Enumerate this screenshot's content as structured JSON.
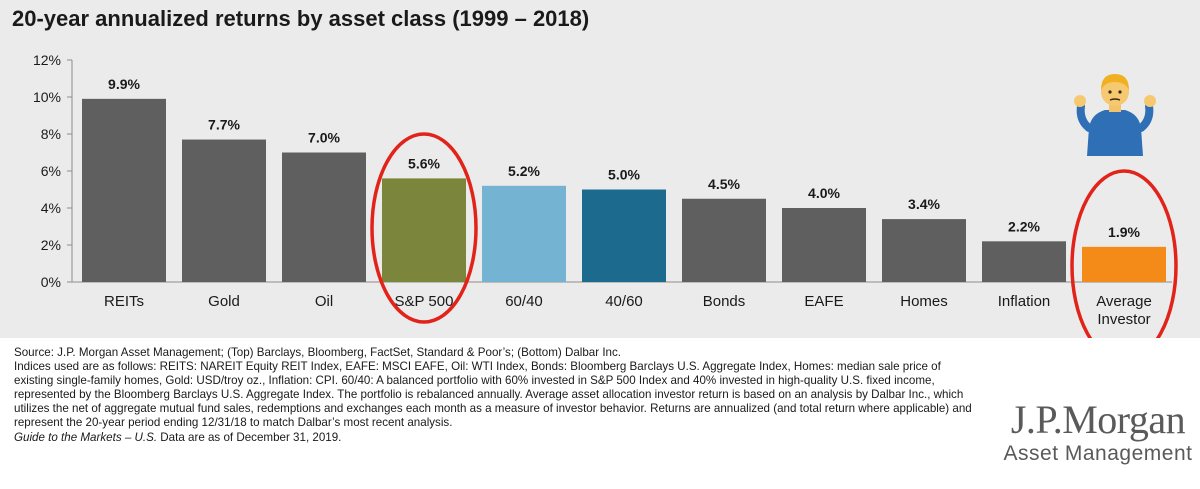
{
  "chart_data": {
    "type": "bar",
    "title": "20-year annualized returns by asset class (1999 – 2018)",
    "categories": [
      "REITs",
      "Gold",
      "Oil",
      "S&P 500",
      "60/40",
      "40/60",
      "Bonds",
      "EAFE",
      "Homes",
      "Inflation",
      "Average Investor"
    ],
    "values": [
      9.9,
      7.7,
      7.0,
      5.6,
      5.2,
      5.0,
      4.5,
      4.0,
      3.4,
      2.2,
      1.9
    ],
    "data_labels": [
      "9.9%",
      "7.7%",
      "7.0%",
      "5.6%",
      "5.2%",
      "5.0%",
      "4.5%",
      "4.0%",
      "3.4%",
      "2.2%",
      "1.9%"
    ],
    "colors": [
      "#5f5f5f",
      "#5f5f5f",
      "#5f5f5f",
      "#7b853c",
      "#74b3d2",
      "#1d6a8f",
      "#5f5f5f",
      "#5f5f5f",
      "#5f5f5f",
      "#5f5f5f",
      "#f48a17"
    ],
    "y_ticks": [
      0,
      2,
      4,
      6,
      8,
      10,
      12
    ],
    "y_tick_labels": [
      "0%",
      "2%",
      "4%",
      "6%",
      "8%",
      "10%",
      "12%"
    ],
    "ylim": [
      0,
      12
    ],
    "xlabel": "",
    "ylabel": "",
    "grid": false,
    "highlighted": [
      "S&P 500",
      "Average Investor"
    ],
    "highlight_color": "#e2231a"
  },
  "footnote": {
    "source": "Source: J.P. Morgan Asset Management; (Top) Barclays, Bloomberg, FactSet, Standard & Poor’s; (Bottom) Dalbar Inc.",
    "indices": "Indices used are as follows: REITS: NAREIT Equity REIT Index, EAFE: MSCI EAFE, Oil: WTI Index, Bonds: Bloomberg Barclays U.S. Aggregate Index, Homes: median sale price of existing single-family homes, Gold: USD/troy oz., Inflation: CPI. 60/40: A balanced portfolio with 60% invested in S&P 500 Index and 40% invested in high-quality U.S. fixed income, represented by the Bloomberg Barclays U.S. Aggregate Index. The portfolio is rebalanced annually. Average asset allocation investor return is based on an analysis by Dalbar Inc., which utilizes the net of aggregate mutual fund sales, redemptions and exchanges each month as a measure of investor behavior. Returns are annualized (and total return where applicable) and represent the 20-year period ending 12/31/18 to match Dalbar’s most recent analysis.",
    "guide_title": "Guide to the Markets – U.S.",
    "guide_date": "Data are as of December 31, 2019."
  },
  "logo": {
    "main": "J.P.Morgan",
    "sub": "Asset Management"
  },
  "emoji": {
    "glyph": "🤷‍♂️",
    "icon": "shrug-icon"
  }
}
